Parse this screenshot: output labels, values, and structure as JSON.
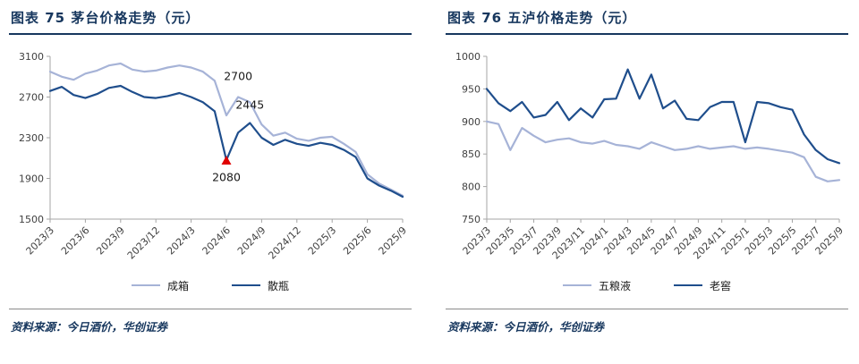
{
  "colors": {
    "title": "#17375E",
    "axis": "#A6A6A6",
    "tick_label": "#404040",
    "annotation": "#1A1A1A",
    "marker_red": "#E00000"
  },
  "chart_data": [
    {
      "id": "maotai",
      "type": "line",
      "title": "图表 75  茅台价格走势（元）",
      "source": "资料来源：今日酒价，华创证券",
      "ylim": [
        1500,
        3100
      ],
      "yticks": [
        1500,
        1900,
        2300,
        2700,
        3100
      ],
      "tick_step": 3,
      "legend_position": "bottom",
      "grid": false,
      "x_labels": [
        "2023/3",
        "2023/4",
        "2023/5",
        "2023/6",
        "2023/7",
        "2023/8",
        "2023/9",
        "2023/10",
        "2023/11",
        "2023/12",
        "2024/1",
        "2024/2",
        "2024/3",
        "2024/4",
        "2024/5",
        "2024/6",
        "2024/7",
        "2024/8",
        "2024/9",
        "2024/10",
        "2024/11",
        "2024/12",
        "2025/1",
        "2025/2",
        "2025/3",
        "2025/4",
        "2025/5",
        "2025/6",
        "2025/7",
        "2025/8",
        "2025/9"
      ],
      "series": [
        {
          "name": "成箱",
          "color": "#A6B3D7",
          "values": [
            2950,
            2900,
            2870,
            2930,
            2960,
            3010,
            3030,
            2970,
            2950,
            2960,
            2990,
            3010,
            2990,
            2950,
            2860,
            2520,
            2700,
            2650,
            2430,
            2320,
            2350,
            2290,
            2270,
            2300,
            2310,
            2240,
            2160,
            1940,
            1850,
            1790,
            1730
          ]
        },
        {
          "name": "散瓶",
          "color": "#1F4E8C",
          "values": [
            2760,
            2800,
            2720,
            2690,
            2730,
            2790,
            2810,
            2750,
            2700,
            2690,
            2710,
            2740,
            2700,
            2650,
            2560,
            2080,
            2350,
            2445,
            2300,
            2230,
            2280,
            2240,
            2220,
            2250,
            2230,
            2180,
            2110,
            1900,
            1830,
            1780,
            1720
          ]
        }
      ],
      "annotations": [
        {
          "text": "2700",
          "i": 16,
          "y": 2865
        },
        {
          "text": "2445",
          "i": 17,
          "y": 2585
        },
        {
          "text": "2080",
          "i": 15,
          "y": 1875
        }
      ],
      "markers": [
        {
          "shape": "triangle-up",
          "i": 15,
          "y": 2080,
          "color": "#E00000"
        }
      ]
    },
    {
      "id": "wulu",
      "type": "line",
      "title": "图表 76  五泸价格走势（元）",
      "source": "资料来源：今日酒价，华创证券",
      "ylim": [
        750,
        1000
      ],
      "yticks": [
        750,
        800,
        850,
        900,
        950,
        1000
      ],
      "tick_step": 2,
      "legend_position": "bottom",
      "grid": false,
      "x_labels": [
        "2023/3",
        "2023/4",
        "2023/5",
        "2023/6",
        "2023/7",
        "2023/8",
        "2023/9",
        "2023/10",
        "2023/11",
        "2023/12",
        "2024/1",
        "2024/2",
        "2024/3",
        "2024/4",
        "2024/5",
        "2024/6",
        "2024/7",
        "2024/8",
        "2024/9",
        "2024/10",
        "2024/11",
        "2024/12",
        "2025/1",
        "2025/2",
        "2025/3",
        "2025/4",
        "2025/5",
        "2025/6",
        "2025/7",
        "2025/8",
        "2025/9"
      ],
      "series": [
        {
          "name": "五粮液",
          "color": "#A6B3D7",
          "values": [
            900,
            896,
            856,
            890,
            878,
            868,
            872,
            874,
            868,
            866,
            870,
            864,
            862,
            858,
            868,
            862,
            856,
            858,
            862,
            858,
            860,
            862,
            858,
            860,
            858,
            855,
            852,
            845,
            815,
            808,
            810
          ]
        },
        {
          "name": "老窖",
          "color": "#1F4E8C",
          "values": [
            950,
            928,
            916,
            930,
            906,
            910,
            930,
            902,
            920,
            906,
            934,
            935,
            980,
            935,
            972,
            920,
            932,
            904,
            902,
            922,
            930,
            930,
            868,
            930,
            928,
            922,
            918,
            880,
            856,
            842,
            836
          ]
        }
      ],
      "annotations": [],
      "markers": []
    }
  ]
}
